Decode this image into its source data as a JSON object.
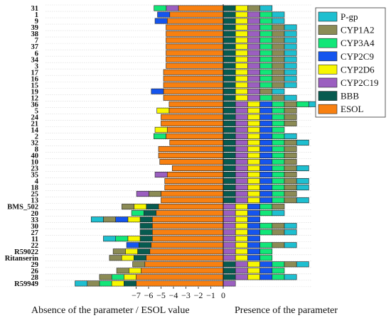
{
  "chart_data": {
    "type": "bar",
    "xlabel_left": "Absence of the parameter / ESOL value",
    "xlabel_right": "Presence of the parameter",
    "x_ticks": [
      "−7",
      "−6",
      "−5",
      "−4",
      "−3",
      "−2",
      "−1",
      "0"
    ],
    "xlim": [
      -9,
      0
    ],
    "legend_position": "top-right",
    "grid": true,
    "parameters": [
      {
        "name": "P-gp",
        "color": "#1ebfd0"
      },
      {
        "name": "CYP1A2",
        "color": "#8b8b55"
      },
      {
        "name": "CYP3A4",
        "color": "#12e678"
      },
      {
        "name": "CYP2C9",
        "color": "#1555ee"
      },
      {
        "name": "CYP2D6",
        "color": "#f7f701"
      },
      {
        "name": "CYP2C19",
        "color": "#9b5fc0"
      },
      {
        "name": "BBB",
        "color": "#075b50"
      },
      {
        "name": "ESOL",
        "color": "#f88010"
      }
    ],
    "compounds": [
      {
        "label": "31",
        "esol": -3.6,
        "present": [
          "BBB",
          "CYP2D6",
          "CYP1A2",
          "P-gp"
        ]
      },
      {
        "label": "1",
        "esol": -4.3,
        "present": [
          "BBB",
          "CYP2D6",
          "CYP2C19",
          "CYP3A4",
          "P-gp"
        ]
      },
      {
        "label": "9",
        "esol": -4.5,
        "present": [
          "BBB",
          "CYP2D6",
          "CYP2C19",
          "CYP3A4",
          "P-gp"
        ]
      },
      {
        "label": "39",
        "esol": -4.6,
        "present": [
          "BBB",
          "CYP2D6",
          "CYP2C19",
          "CYP3A4",
          "CYP1A2",
          "P-gp"
        ]
      },
      {
        "label": "38",
        "esol": -4.6,
        "present": [
          "BBB",
          "CYP2D6",
          "CYP2C19",
          "CYP3A4",
          "CYP1A2",
          "P-gp"
        ]
      },
      {
        "label": "7",
        "esol": -4.6,
        "present": [
          "BBB",
          "CYP2D6",
          "CYP2C19",
          "CYP3A4",
          "CYP1A2",
          "P-gp"
        ]
      },
      {
        "label": "37",
        "esol": -4.6,
        "present": [
          "BBB",
          "CYP2D6",
          "CYP2C19",
          "CYP3A4",
          "CYP1A2",
          "P-gp"
        ]
      },
      {
        "label": "6",
        "esol": -4.6,
        "present": [
          "BBB",
          "CYP2D6",
          "CYP2C19",
          "CYP3A4",
          "CYP1A2",
          "P-gp"
        ]
      },
      {
        "label": "34",
        "esol": -4.6,
        "present": [
          "BBB",
          "CYP2D6",
          "CYP2C19",
          "CYP3A4",
          "CYP1A2",
          "P-gp"
        ]
      },
      {
        "label": "3",
        "esol": -4.6,
        "present": [
          "BBB",
          "CYP2D6",
          "CYP2C19",
          "CYP3A4",
          "CYP1A2",
          "P-gp"
        ]
      },
      {
        "label": "17",
        "esol": -4.8,
        "present": [
          "BBB",
          "CYP2D6",
          "CYP2C19",
          "CYP3A4",
          "CYP1A2",
          "P-gp"
        ]
      },
      {
        "label": "16",
        "esol": -4.8,
        "present": [
          "BBB",
          "CYP2D6",
          "CYP2C19",
          "CYP3A4",
          "CYP1A2",
          "P-gp"
        ]
      },
      {
        "label": "15",
        "esol": -4.8,
        "present": [
          "BBB",
          "CYP2D6",
          "CYP2C19",
          "CYP3A4",
          "CYP1A2",
          "P-gp"
        ]
      },
      {
        "label": "19",
        "esol": -4.8,
        "present": [
          "BBB",
          "CYP2D6",
          "CYP2C19",
          "CYP1A2",
          "P-gp"
        ]
      },
      {
        "label": "12",
        "esol": -4.8,
        "present": [
          "BBB",
          "CYP2D6",
          "CYP2C19",
          "CYP3A4",
          "CYP1A2",
          "P-gp"
        ]
      },
      {
        "label": "36",
        "esol": -4.35,
        "present": [
          "BBB",
          "CYP2C19",
          "CYP2D6",
          "CYP2C9",
          "CYP3A4",
          "CYP1A2",
          "CYP3A4",
          "P-gp"
        ]
      },
      {
        "label": "5",
        "esol": -4.35,
        "present": [
          "BBB",
          "CYP2C19",
          "CYP2D6",
          "CYP2C9",
          "CYP3A4",
          "CYP1A2"
        ]
      },
      {
        "label": "24",
        "esol": -5.0,
        "present": [
          "BBB",
          "CYP2C19",
          "CYP2D6",
          "CYP2C9",
          "CYP3A4",
          "CYP1A2"
        ]
      },
      {
        "label": "21",
        "esol": -5.0,
        "present": [
          "BBB",
          "CYP2C19",
          "CYP2D6",
          "CYP2C9",
          "CYP3A4",
          "CYP1A2"
        ]
      },
      {
        "label": "14",
        "esol": -4.5,
        "present": [
          "BBB",
          "CYP2C19",
          "CYP2D6",
          "CYP2C9",
          "CYP3A4"
        ]
      },
      {
        "label": "2",
        "esol": -4.6,
        "present": [
          "BBB",
          "CYP2C19",
          "CYP2D6",
          "CYP2C9",
          "CYP3A4",
          "P-gp"
        ]
      },
      {
        "label": "32",
        "esol": -4.3,
        "present": [
          "BBB",
          "CYP2C19",
          "CYP2D6",
          "CYP2C9",
          "CYP3A4",
          "CYP1A2",
          "P-gp"
        ]
      },
      {
        "label": "8",
        "esol": -5.2,
        "present": [
          "BBB",
          "CYP2C19",
          "CYP2D6",
          "CYP2C9",
          "CYP3A4",
          "CYP1A2"
        ]
      },
      {
        "label": "40",
        "esol": -5.2,
        "present": [
          "BBB",
          "CYP2C19",
          "CYP2D6",
          "CYP2C9",
          "CYP3A4",
          "CYP1A2"
        ]
      },
      {
        "label": "10",
        "esol": -5.1,
        "present": [
          "BBB",
          "CYP2C19",
          "CYP2D6",
          "CYP2C9",
          "CYP3A4",
          "CYP1A2"
        ]
      },
      {
        "label": "23",
        "esol": -4.1,
        "present": [
          "BBB",
          "CYP2C19",
          "CYP2D6",
          "CYP2C9",
          "CYP3A4",
          "CYP1A2",
          "P-gp"
        ]
      },
      {
        "label": "35",
        "esol": -4.5,
        "present": [
          "BBB",
          "CYP2C19",
          "CYP2D6",
          "CYP2C9",
          "CYP3A4",
          "CYP1A2"
        ]
      },
      {
        "label": "4",
        "esol": -4.7,
        "present": [
          "BBB",
          "CYP2C19",
          "CYP2D6",
          "CYP2C9",
          "CYP3A4",
          "CYP1A2",
          "P-gp"
        ]
      },
      {
        "label": "18",
        "esol": -4.7,
        "present": [
          "BBB",
          "CYP2C19",
          "CYP2D6",
          "CYP2C9",
          "CYP3A4",
          "CYP1A2",
          "P-gp"
        ]
      },
      {
        "label": "25",
        "esol": -5.0,
        "present": [
          "BBB",
          "CYP2C19",
          "CYP2D6",
          "CYP2C9",
          "CYP3A4",
          "CYP1A2"
        ]
      },
      {
        "label": "13",
        "esol": -5.0,
        "present": [
          "BBB",
          "CYP2C19",
          "CYP2D6",
          "CYP2C9",
          "CYP3A4",
          "CYP1A2",
          "P-gp"
        ]
      },
      {
        "label": "BMS_502",
        "esol": -5.2,
        "present": [
          "CYP2C19",
          "CYP2D6",
          "CYP2C9",
          "CYP3A4",
          "CYP1A2"
        ]
      },
      {
        "label": "20",
        "esol": -5.4,
        "present": [
          "CYP2C19",
          "CYP2D6",
          "CYP2C9",
          "CYP3A4",
          "P-gp"
        ]
      },
      {
        "label": "33",
        "esol": -5.7,
        "present": [
          "CYP2C19",
          "CYP2D6",
          "CYP2C9"
        ]
      },
      {
        "label": "30",
        "esol": -5.7,
        "present": [
          "CYP2C19",
          "CYP2D6",
          "CYP2C9",
          "CYP3A4",
          "CYP1A2",
          "P-gp"
        ]
      },
      {
        "label": "27",
        "esol": -5.7,
        "present": [
          "CYP2C19",
          "CYP2D6",
          "CYP2C9",
          "CYP3A4",
          "CYP1A2",
          "P-gp"
        ]
      },
      {
        "label": "11",
        "esol": -5.7,
        "present": [
          "CYP2C19",
          "CYP2D6",
          "CYP2C9"
        ]
      },
      {
        "label": "22",
        "esol": -5.8,
        "present": [
          "CYP2C19",
          "CYP2D6",
          "CYP2C9",
          "CYP3A4",
          "CYP1A2",
          "P-gp"
        ]
      },
      {
        "label": "R59022",
        "esol": -5.9,
        "present": [
          "CYP2C19",
          "CYP2D6",
          "CYP2C9",
          "CYP3A4"
        ]
      },
      {
        "label": "Ritanserin",
        "esol": -6.2,
        "present": [
          "CYP2C19",
          "CYP2D6",
          "CYP2C9",
          "CYP3A4"
        ]
      },
      {
        "label": "29",
        "esol": -6.3,
        "present": [
          "BBB",
          "CYP2C19",
          "CYP2D6",
          "CYP2C9",
          "CYP3A4",
          "CYP1A2",
          "P-gp"
        ]
      },
      {
        "label": "26",
        "esol": -6.6,
        "present": [
          "BBB",
          "CYP2C19",
          "CYP2D6",
          "CYP2C9",
          "CYP3A4"
        ]
      },
      {
        "label": "28",
        "esol": -7.0,
        "present": [
          "BBB",
          "CYP2C19",
          "CYP2D6",
          "CYP2C9",
          "CYP3A4",
          "P-gp"
        ]
      },
      {
        "label": "R59949",
        "esol": -7.0,
        "present": [
          "CYP2C19"
        ]
      }
    ],
    "absent_left": [
      [
        "CYP2C19",
        "CYP3A4"
      ],
      [
        "CYP2C9"
      ],
      [
        "CYP2C9"
      ],
      [],
      [],
      [],
      [],
      [],
      [],
      [],
      [],
      [],
      [],
      [
        "CYP2C9"
      ],
      [],
      [],
      [
        "CYP2D6"
      ],
      [],
      [],
      [
        "CYP2D6"
      ],
      [
        "CYP3A4"
      ],
      [],
      [],
      [],
      [],
      [],
      [
        "CYP2C19"
      ],
      [],
      [],
      [
        "CYP1A2",
        "CYP2C19"
      ],
      [],
      [
        "BBB",
        "CYP2D6",
        "CYP1A2"
      ],
      [
        "BBB",
        "CYP3A4"
      ],
      [
        "BBB",
        "CYP2D6",
        "CYP2C9",
        "CYP1A2",
        "P-gp"
      ],
      [
        "BBB"
      ],
      [
        "BBB"
      ],
      [
        "BBB",
        "CYP2D6",
        "CYP3A4",
        "P-gp"
      ],
      [
        "BBB",
        "CYP2C9"
      ],
      [
        "BBB",
        "CYP2D6",
        "CYP1A2"
      ],
      [
        "BBB",
        "CYP2D6",
        "CYP1A2"
      ],
      [
        "CYP1A2"
      ],
      [
        "CYP2D6",
        "CYP1A2"
      ],
      [
        "CYP2D6",
        "CYP3A4",
        "CYP1A2"
      ],
      [
        "BBB",
        "CYP2D6",
        "CYP3A4",
        "CYP1A2",
        "P-gp"
      ]
    ]
  }
}
